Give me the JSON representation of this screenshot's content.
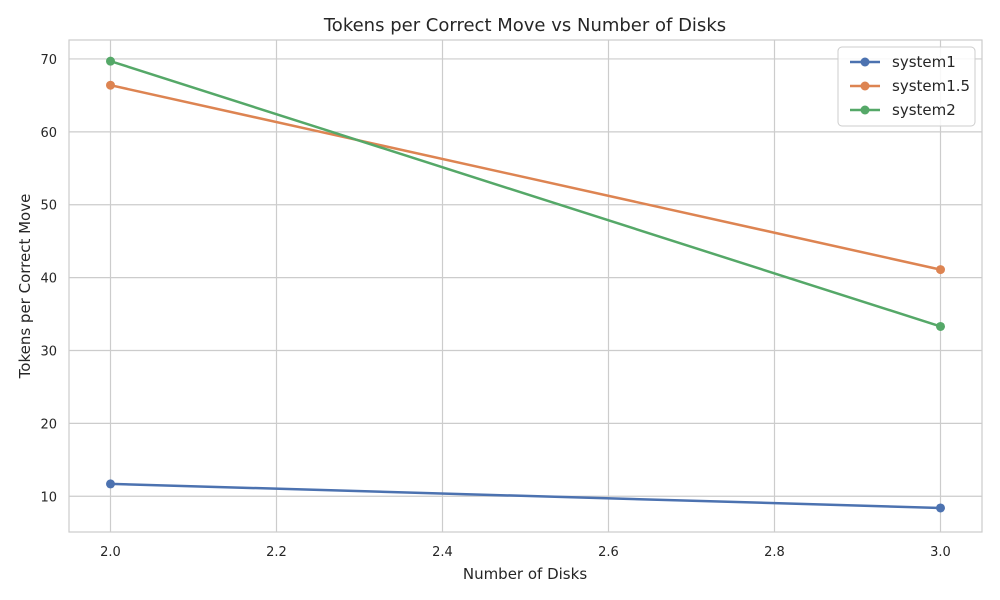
{
  "chart_data": {
    "type": "line",
    "title": "Tokens per Correct Move vs Number of Disks",
    "xlabel": "Number of Disks",
    "ylabel": "Tokens per Correct Move",
    "x": [
      2.0,
      3.0
    ],
    "xlim": [
      1.95,
      3.05
    ],
    "ylim": [
      5.1,
      72.6
    ],
    "xticks": [
      2.0,
      2.2,
      2.4,
      2.6,
      2.8,
      3.0
    ],
    "xtick_labels": [
      "2.0",
      "2.2",
      "2.4",
      "2.6",
      "2.8",
      "3.0"
    ],
    "yticks": [
      10,
      20,
      30,
      40,
      50,
      60,
      70
    ],
    "ytick_labels": [
      "10",
      "20",
      "30",
      "40",
      "50",
      "60",
      "70"
    ],
    "grid": true,
    "legend_position": "top-right",
    "series": [
      {
        "name": "system1",
        "color": "#4c72b0",
        "values": [
          11.7,
          8.4
        ]
      },
      {
        "name": "system1.5",
        "color": "#dd8452",
        "values": [
          66.4,
          41.1
        ]
      },
      {
        "name": "system2",
        "color": "#55a868",
        "values": [
          69.7,
          33.3
        ]
      }
    ]
  }
}
